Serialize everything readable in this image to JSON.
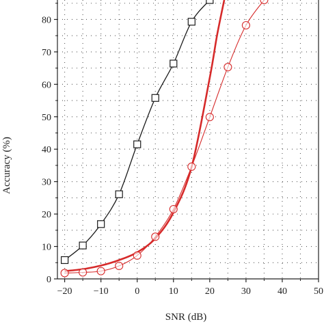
{
  "chart_data": {
    "type": "line",
    "title": "",
    "xlabel": "SNR (dB)",
    "ylabel": "Accuracy (%)",
    "xlim": [
      -22,
      50
    ],
    "ylim": [
      0,
      86
    ],
    "x_ticks": [
      -20,
      -10,
      0,
      10,
      20,
      30,
      40,
      50
    ],
    "x_tick_labels": [
      "−20",
      "−10",
      "0",
      "10",
      "20",
      "30",
      "40",
      "50"
    ],
    "y_ticks": [
      0,
      10,
      20,
      30,
      40,
      50,
      60,
      70,
      80
    ],
    "y_tick_labels": [
      "0",
      "10",
      "20",
      "30",
      "40",
      "50",
      "60",
      "70",
      "80"
    ],
    "grid": true,
    "series": [
      {
        "color": "#1a1a1a",
        "line_width": 1.3,
        "marker": "square",
        "x": [
          -20,
          -15,
          -10,
          -5,
          0,
          5,
          10,
          15,
          20
        ],
        "y": [
          5.8,
          10.3,
          16.9,
          26.1,
          41.5,
          55.8,
          66.4,
          79.3,
          86
        ]
      },
      {
        "color": "#d62a2a",
        "line_width": 2.6,
        "marker": "none",
        "x": [
          -20,
          -15,
          -10,
          -5,
          0,
          5,
          10,
          15,
          20,
          22,
          24
        ],
        "y": [
          2.4,
          3.0,
          4.1,
          5.8,
          8.2,
          12.5,
          20.5,
          34.5,
          62.0,
          75.0,
          86
        ]
      },
      {
        "color": "#d62a2a",
        "line_width": 1.1,
        "marker": "circle",
        "x": [
          -20,
          -15,
          -10,
          -5,
          0,
          5,
          10,
          15,
          20,
          25,
          30,
          35
        ],
        "y": [
          1.8,
          2.0,
          2.4,
          4.0,
          7.2,
          13.0,
          21.5,
          34.6,
          49.9,
          65.3,
          78.2,
          86
        ]
      }
    ]
  }
}
